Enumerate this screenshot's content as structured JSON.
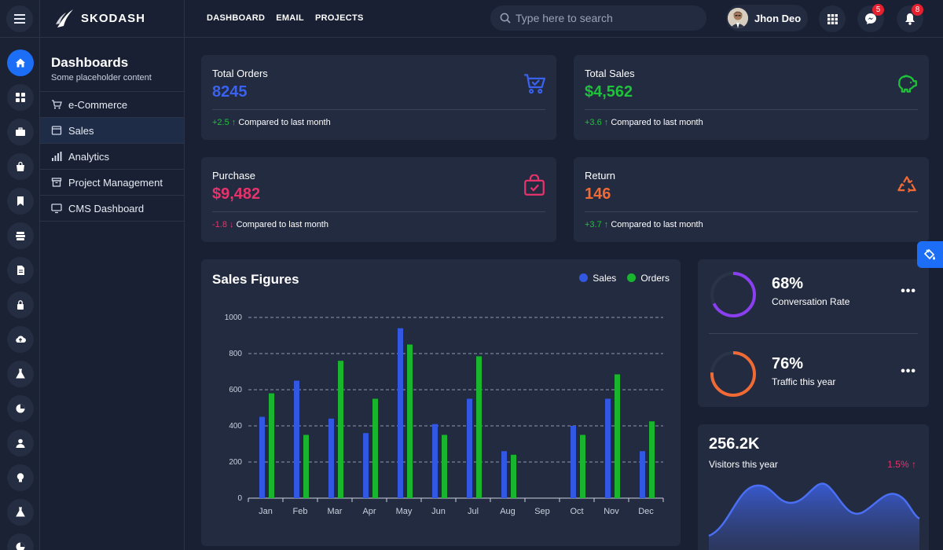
{
  "brand": {
    "name": "SKODASH"
  },
  "topnav": [
    "DASHBOARD",
    "EMAIL",
    "PROJECTS"
  ],
  "search": {
    "placeholder": "Type here to search"
  },
  "user": {
    "name": "Jhon Deo"
  },
  "notifications": {
    "messages": "5",
    "alerts": "8"
  },
  "rail_icons": [
    "home-icon",
    "grid-icon",
    "briefcase-icon",
    "bag-icon",
    "bookmark-icon",
    "layers-icon",
    "document-icon",
    "lock-icon",
    "cloud-upload-icon",
    "flask-icon",
    "pie-chart-icon",
    "user-icon",
    "lightbulb-icon",
    "flask-icon",
    "pie-chart-icon"
  ],
  "subnav": {
    "title": "Dashboards",
    "description": "Some placeholder content",
    "items": [
      {
        "label": "e-Commerce",
        "icon": "cart-icon"
      },
      {
        "label": "Sales",
        "icon": "window-icon",
        "active": true
      },
      {
        "label": "Analytics",
        "icon": "bar-chart-icon"
      },
      {
        "label": "Project Management",
        "icon": "archive-icon"
      },
      {
        "label": "CMS Dashboard",
        "icon": "monitor-icon"
      }
    ]
  },
  "stats": [
    {
      "label": "Total Orders",
      "value": "8245",
      "change": "+2.5",
      "arrow": "↑",
      "note": "Compared to last month",
      "color": "#3a62f2",
      "change_color": "#1fc33a",
      "icon": "cart-check-icon"
    },
    {
      "label": "Total Sales",
      "value": "$4,562",
      "change": "+3.6",
      "arrow": "↑",
      "note": "Compared to last month",
      "color": "#1fc33a",
      "change_color": "#1fc33a",
      "icon": "piggy-bank-icon"
    },
    {
      "label": "Purchase",
      "value": "$9,482",
      "change": "-1.8",
      "arrow": "↓",
      "note": "Compared to last month",
      "color": "#e6336b",
      "change_color": "#e6336b",
      "icon": "shopping-bag-check-icon"
    },
    {
      "label": "Return",
      "value": "146",
      "change": "+3.7",
      "arrow": "↑",
      "note": "Compared to last month",
      "color": "#f06a36",
      "change_color": "#1fc33a",
      "icon": "recycle-icon"
    }
  ],
  "sales_chart": {
    "title": "Sales Figures"
  },
  "chart_data": {
    "type": "bar",
    "categories": [
      "Jan",
      "Feb",
      "Mar",
      "Apr",
      "May",
      "Jun",
      "Jul",
      "Aug",
      "Sep",
      "Oct",
      "Nov",
      "Dec"
    ],
    "series": [
      {
        "name": "Sales",
        "color": "#3257e3",
        "values": [
          450,
          650,
          440,
          360,
          940,
          410,
          550,
          260,
          0,
          400,
          550,
          260
        ]
      },
      {
        "name": "Orders",
        "color": "#19b52e",
        "values": [
          580,
          350,
          760,
          550,
          850,
          350,
          785,
          240,
          0,
          350,
          685,
          425
        ]
      }
    ],
    "yticks": [
      "0",
      "200",
      "400",
      "600",
      "800",
      "1000"
    ],
    "ylim": [
      0,
      1000
    ],
    "grid": true,
    "legend": "top-right"
  },
  "kpis": [
    {
      "value": "68%",
      "label": "Conversation Rate",
      "percent": 68,
      "color": "#8a3ff0"
    },
    {
      "value": "76%",
      "label": "Traffic this year",
      "percent": 76,
      "color": "#f06a36"
    }
  ],
  "visitors": {
    "value": "256.2K",
    "label": "Visitors this year",
    "change": "1.5%",
    "arrow": "↑",
    "change_color": "#e6336b"
  }
}
